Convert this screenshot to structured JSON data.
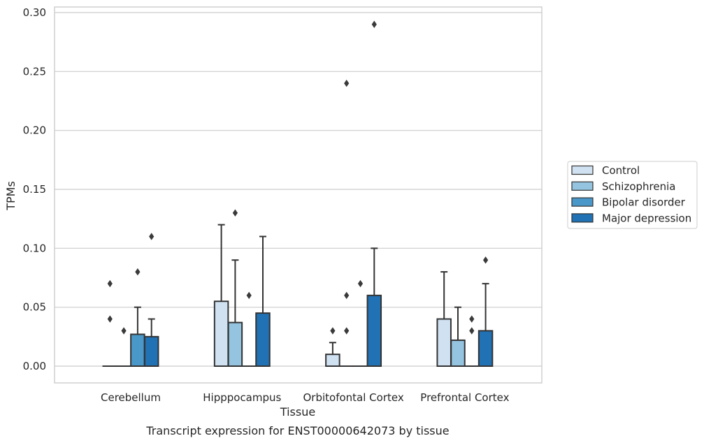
{
  "chart_data": {
    "type": "box",
    "xlabel": "Tissue",
    "ylabel": "TPMs",
    "caption": "Transcript expression for ENST00000642073 by tissue",
    "ylim": [
      -0.014,
      0.305
    ],
    "yticks": [
      0.0,
      0.05,
      0.1,
      0.15,
      0.2,
      0.25,
      0.3
    ],
    "ytick_labels": [
      "0.00",
      "0.05",
      "0.10",
      "0.15",
      "0.20",
      "0.25",
      "0.30"
    ],
    "grid": true,
    "legend_position": "right",
    "categories": [
      "Cerebellum",
      "Hipppocampus",
      "Orbitofontal Cortex",
      "Prefrontal Cortex"
    ],
    "series": [
      {
        "name": "Control",
        "color": "#d0e1f2",
        "boxes": [
          {
            "q1": 0,
            "median": 0,
            "q3": 0,
            "whisker_low": 0,
            "whisker_high": 0,
            "outliers": [
              0.04,
              0.07
            ]
          },
          {
            "q1": 0,
            "median": 0,
            "q3": 0.055,
            "whisker_low": 0,
            "whisker_high": 0.12,
            "outliers": []
          },
          {
            "q1": 0,
            "median": 0,
            "q3": 0.01,
            "whisker_low": 0,
            "whisker_high": 0.02,
            "outliers": [
              0.03
            ]
          },
          {
            "q1": 0,
            "median": 0,
            "q3": 0.04,
            "whisker_low": 0,
            "whisker_high": 0.08,
            "outliers": []
          }
        ]
      },
      {
        "name": "Schizophrenia",
        "color": "#94c4df",
        "boxes": [
          {
            "q1": 0,
            "median": 0,
            "q3": 0,
            "whisker_low": 0,
            "whisker_high": 0,
            "outliers": [
              0.03
            ]
          },
          {
            "q1": 0,
            "median": 0,
            "q3": 0.037,
            "whisker_low": 0,
            "whisker_high": 0.09,
            "outliers": [
              0.13
            ]
          },
          {
            "q1": 0,
            "median": 0,
            "q3": 0,
            "whisker_low": 0,
            "whisker_high": 0,
            "outliers": [
              0.03,
              0.06,
              0.24
            ]
          },
          {
            "q1": 0,
            "median": 0,
            "q3": 0.022,
            "whisker_low": 0,
            "whisker_high": 0.05,
            "outliers": []
          }
        ]
      },
      {
        "name": "Bipolar disorder",
        "color": "#4a98c9",
        "boxes": [
          {
            "q1": 0,
            "median": 0,
            "q3": 0.027,
            "whisker_low": 0,
            "whisker_high": 0.05,
            "outliers": [
              0.08
            ]
          },
          {
            "q1": 0,
            "median": 0,
            "q3": 0,
            "whisker_low": 0,
            "whisker_high": 0,
            "outliers": [
              0.06
            ]
          },
          {
            "q1": 0,
            "median": 0,
            "q3": 0,
            "whisker_low": 0,
            "whisker_high": 0,
            "outliers": [
              0.07
            ]
          },
          {
            "q1": 0,
            "median": 0,
            "q3": 0,
            "whisker_low": 0,
            "whisker_high": 0,
            "outliers": [
              0.03,
              0.04
            ]
          }
        ]
      },
      {
        "name": "Major depression",
        "color": "#2171b5",
        "boxes": [
          {
            "q1": 0,
            "median": 0,
            "q3": 0.025,
            "whisker_low": 0,
            "whisker_high": 0.04,
            "outliers": [
              0.11
            ]
          },
          {
            "q1": 0,
            "median": 0,
            "q3": 0.045,
            "whisker_low": 0,
            "whisker_high": 0.11,
            "outliers": []
          },
          {
            "q1": 0,
            "median": 0,
            "q3": 0.06,
            "whisker_low": 0,
            "whisker_high": 0.1,
            "outliers": [
              0.29
            ]
          },
          {
            "q1": 0,
            "median": 0,
            "q3": 0.03,
            "whisker_low": 0,
            "whisker_high": 0.07,
            "outliers": [
              0.09
            ]
          }
        ]
      }
    ]
  }
}
